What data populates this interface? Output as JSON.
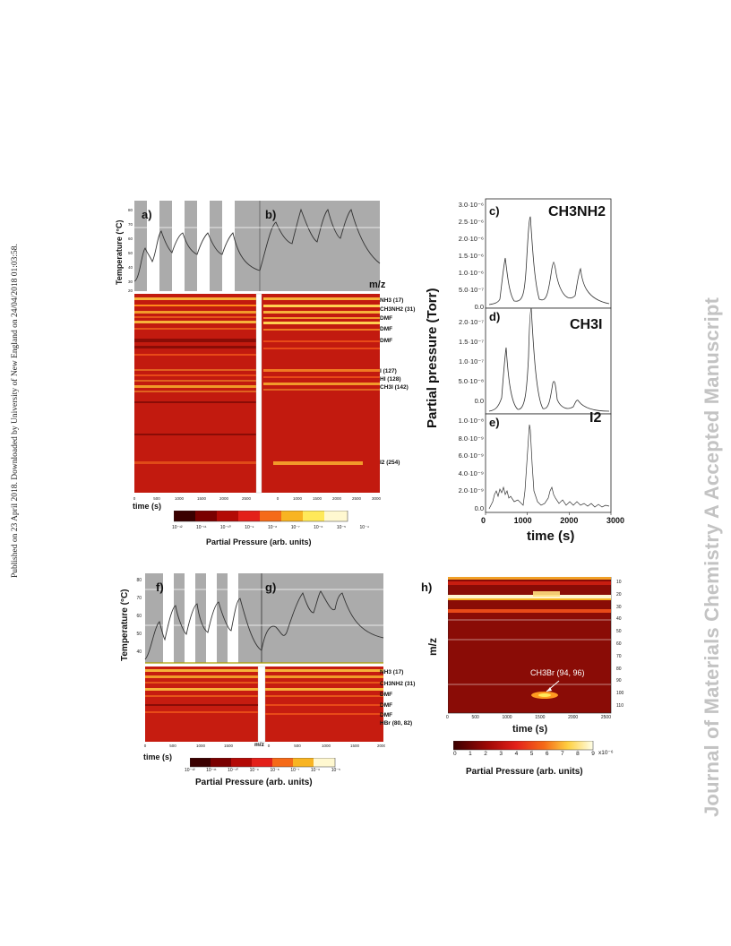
{
  "side_note": "Published on 23 April 2018. Downloaded by University of New England on 24/04/2018 01:03:58.",
  "watermark": "Journal of Materials Chemistry A Accepted Manuscript",
  "panel_labels": {
    "a": "a)",
    "b": "b)",
    "c": "c)",
    "d": "d)",
    "e": "e)",
    "f": "f)",
    "g": "g)",
    "h": "h)"
  },
  "temperature_label": "Temperature (°C)",
  "mz_label": "m/z",
  "time_label": "time (s)",
  "partial_pressure_label": "Partial Pressure (arb. units)",
  "top_left": {
    "temp_ticks": [
      "80",
      "70",
      "60",
      "50",
      "40",
      "30",
      "20"
    ],
    "time_ticks": [
      "0",
      "500",
      "1000",
      "1500",
      "2000",
      "2500"
    ],
    "time_ticks_b": [
      "500",
      "1000",
      "1500",
      "2000",
      "2500",
      "3000"
    ],
    "species": [
      "NH3 (17)",
      "CH3NH2 (31)",
      "DMF",
      "DMF",
      "DMF",
      "I (127)",
      "HI (128)",
      "CH3I (142)",
      "I2 (254)"
    ],
    "colorbar_ticks": [
      "10⁻¹²",
      "10⁻¹¹",
      "10⁻¹⁰",
      "10⁻⁹",
      "10⁻⁸",
      "10⁻⁷",
      "10⁻⁶",
      "10⁻⁵",
      "10⁻⁴"
    ]
  },
  "right_panels": {
    "ylabel": "Partial pressure (Torr)",
    "xlabel": "time (s)",
    "x_ticks": [
      "0",
      "1000",
      "2000",
      "3000"
    ],
    "c": {
      "species": "CH3NH2",
      "ticks": [
        "3.0·10⁻⁶",
        "2.5·10⁻⁶",
        "2.0·10⁻⁶",
        "1.5·10⁻⁶",
        "1.0·10⁻⁶",
        "5.0·10⁻⁷",
        "0.0"
      ]
    },
    "d": {
      "species": "CH3I",
      "ticks": [
        "2.0·10⁻⁷",
        "1.5·10⁻⁷",
        "1.0·10⁻⁷",
        "5.0·10⁻⁸",
        "0.0"
      ]
    },
    "e": {
      "species": "I2",
      "ticks": [
        "1.0·10⁻⁸",
        "8.0·10⁻⁹",
        "6.0·10⁻⁹",
        "4.0·10⁻⁹",
        "2.0·10⁻⁹",
        "0.0"
      ]
    }
  },
  "bottom_left": {
    "temp_ticks": [
      "80",
      "70",
      "60",
      "50",
      "40"
    ],
    "time_ticks": [
      "0",
      "500",
      "1000",
      "1500",
      "2000"
    ],
    "species": [
      "NH3 (17)",
      "CH3NH2 (31)",
      "DMF",
      "DMF",
      "DMF",
      "HBr (80, 82)"
    ],
    "colorbar_ticks": [
      "10⁻¹²",
      "10⁻¹¹",
      "10⁻¹⁰",
      "10⁻⁹",
      "10⁻⁸",
      "10⁻⁷",
      "10⁻⁶",
      "10⁻⁵"
    ]
  },
  "bottom_right": {
    "annotation": "CH3Br (94, 96)",
    "y_ticks": [
      "10",
      "20",
      "30",
      "40",
      "50",
      "60",
      "70",
      "80",
      "90",
      "100",
      "110"
    ],
    "x_ticks": [
      "0",
      "500",
      "1000",
      "1500",
      "2000",
      "2500"
    ],
    "colorbar_ticks": [
      "0",
      "1",
      "2",
      "3",
      "4",
      "5",
      "6",
      "7",
      "8",
      "9"
    ],
    "colorbar_exp": "x10⁻⁶"
  }
}
